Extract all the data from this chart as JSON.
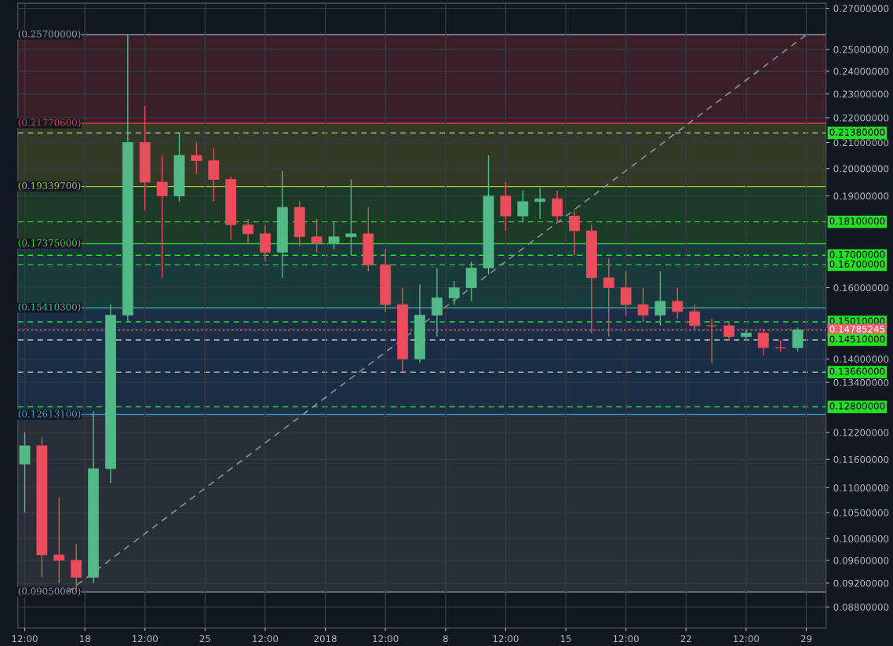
{
  "chart_data": {
    "type": "candlestick",
    "log": true,
    "grid": true,
    "x": [
      "2017-12-14T12:00",
      "2017-12-15T12:00",
      "2017-12-16T12:00",
      "2017-12-17T12:00",
      "2017-12-18T12:00",
      "2017-12-19T12:00",
      "2017-12-20T12:00",
      "2017-12-21T12:00",
      "2017-12-22T12:00",
      "2017-12-23T12:00",
      "2017-12-24T12:00",
      "2017-12-25T12:00",
      "2017-12-26T12:00",
      "2017-12-27T12:00",
      "2017-12-28T12:00",
      "2017-12-29T12:00",
      "2017-12-30T12:00",
      "2017-12-31T12:00",
      "2018-01-01T12:00",
      "2018-01-02T12:00",
      "2018-01-03T12:00",
      "2018-01-04T12:00",
      "2018-01-05T12:00",
      "2018-01-06T12:00",
      "2018-01-07T12:00",
      "2018-01-08T12:00",
      "2018-01-09T12:00",
      "2018-01-10T12:00",
      "2018-01-11T12:00",
      "2018-01-12T12:00",
      "2018-01-13T12:00",
      "2018-01-14T12:00",
      "2018-01-15T12:00",
      "2018-01-16T12:00",
      "2018-01-17T12:00",
      "2018-01-18T12:00",
      "2018-01-19T12:00",
      "2018-01-20T12:00",
      "2018-01-21T12:00",
      "2018-01-22T12:00",
      "2018-01-23T12:00",
      "2018-01-24T12:00",
      "2018-01-25T12:00",
      "2018-01-26T12:00",
      "2018-01-27T12:00",
      "2018-01-28T12:00"
    ],
    "ohlc": [
      [
        0.115,
        0.122,
        0.105,
        0.119
      ],
      [
        0.119,
        0.121,
        0.093,
        0.097
      ],
      [
        0.097,
        0.108,
        0.092,
        0.096
      ],
      [
        0.096,
        0.099,
        0.0905,
        0.093
      ],
      [
        0.093,
        0.127,
        0.092,
        0.114
      ],
      [
        0.114,
        0.155,
        0.111,
        0.152
      ],
      [
        0.152,
        0.257,
        0.15,
        0.21
      ],
      [
        0.21,
        0.225,
        0.185,
        0.195
      ],
      [
        0.195,
        0.205,
        0.163,
        0.19
      ],
      [
        0.19,
        0.214,
        0.188,
        0.205
      ],
      [
        0.205,
        0.21,
        0.198,
        0.203
      ],
      [
        0.203,
        0.208,
        0.188,
        0.196
      ],
      [
        0.196,
        0.197,
        0.175,
        0.18
      ],
      [
        0.18,
        0.182,
        0.174,
        0.177
      ],
      [
        0.177,
        0.18,
        0.168,
        0.171
      ],
      [
        0.171,
        0.199,
        0.163,
        0.186
      ],
      [
        0.186,
        0.188,
        0.173,
        0.176
      ],
      [
        0.176,
        0.182,
        0.171,
        0.174
      ],
      [
        0.174,
        0.181,
        0.172,
        0.176
      ],
      [
        0.176,
        0.196,
        0.17,
        0.177
      ],
      [
        0.177,
        0.186,
        0.165,
        0.167
      ],
      [
        0.167,
        0.172,
        0.153,
        0.155
      ],
      [
        0.155,
        0.16,
        0.1366,
        0.14
      ],
      [
        0.14,
        0.161,
        0.139,
        0.152
      ],
      [
        0.152,
        0.166,
        0.146,
        0.157
      ],
      [
        0.157,
        0.162,
        0.155,
        0.16
      ],
      [
        0.16,
        0.168,
        0.156,
        0.166
      ],
      [
        0.166,
        0.205,
        0.164,
        0.19
      ],
      [
        0.19,
        0.195,
        0.178,
        0.183
      ],
      [
        0.183,
        0.192,
        0.181,
        0.188
      ],
      [
        0.188,
        0.193,
        0.182,
        0.189
      ],
      [
        0.189,
        0.192,
        0.181,
        0.183
      ],
      [
        0.183,
        0.185,
        0.17,
        0.178
      ],
      [
        0.178,
        0.18,
        0.147,
        0.163
      ],
      [
        0.163,
        0.169,
        0.146,
        0.16
      ],
      [
        0.16,
        0.165,
        0.152,
        0.155
      ],
      [
        0.155,
        0.16,
        0.15,
        0.152
      ],
      [
        0.152,
        0.165,
        0.149,
        0.156
      ],
      [
        0.156,
        0.16,
        0.151,
        0.153
      ],
      [
        0.153,
        0.155,
        0.148,
        0.149
      ],
      [
        0.149,
        0.151,
        0.139,
        0.149
      ],
      [
        0.149,
        0.15,
        0.145,
        0.146
      ],
      [
        0.146,
        0.148,
        0.145,
        0.147
      ],
      [
        0.147,
        0.148,
        0.141,
        0.143
      ],
      [
        0.143,
        0.145,
        0.142,
        0.143
      ],
      [
        0.143,
        0.1485,
        0.142,
        0.14785245
      ]
    ],
    "colors": [
      "#53b987",
      "#eb4d5c",
      "#eb4d5c",
      "#eb4d5c",
      "#53b987",
      "#53b987",
      "#53b987",
      "#eb4d5c",
      "#eb4d5c",
      "#53b987",
      "#eb4d5c",
      "#eb4d5c",
      "#eb4d5c",
      "#eb4d5c",
      "#eb4d5c",
      "#53b987",
      "#eb4d5c",
      "#eb4d5c",
      "#53b987",
      "#53b987",
      "#eb4d5c",
      "#eb4d5c",
      "#eb4d5c",
      "#53b987",
      "#53b987",
      "#53b987",
      "#53b987",
      "#53b987",
      "#eb4d5c",
      "#53b987",
      "#53b987",
      "#eb4d5c",
      "#eb4d5c",
      "#eb4d5c",
      "#eb4d5c",
      "#eb4d5c",
      "#eb4d5c",
      "#53b987",
      "#eb4d5c",
      "#eb4d5c",
      "#eb4d5c",
      "#eb4d5c",
      "#53b987",
      "#eb4d5c",
      "#eb4d5c",
      "#53b987"
    ],
    "series": [
      {
        "type": "line",
        "x": [
          "2017-12-17",
          "2018-01-29"
        ],
        "values": [
          0.0905,
          0.257
        ],
        "color": "#8a8d96",
        "line_style": "dashed"
      }
    ],
    "xlim": [
      "2017-12-14T02:24",
      "2018-01-30T03:36"
    ],
    "xticks": [
      {
        "value": "2017-12-14T12:00",
        "label": "12:00"
      },
      {
        "value": "2017-12-18",
        "label": "18"
      },
      {
        "value": "2017-12-21T12:00",
        "label": "12:00"
      },
      {
        "value": "2017-12-25",
        "label": "25"
      },
      {
        "value": "2017-12-28T12:00",
        "label": "12:00"
      },
      {
        "value": "2018-01-01",
        "label": "2018"
      },
      {
        "value": "2018-01-04T12:00",
        "label": "12:00"
      },
      {
        "value": "2018-01-08",
        "label": "8"
      },
      {
        "value": "2018-01-11T12:00",
        "label": "12:00"
      },
      {
        "value": "2018-01-15",
        "label": "15"
      },
      {
        "value": "2018-01-18T12:00",
        "label": "12:00"
      },
      {
        "value": "2018-01-22",
        "label": "22"
      },
      {
        "value": "2018-01-25T12:00",
        "label": "12:00"
      },
      {
        "value": "2018-01-29",
        "label": "29"
      }
    ],
    "ylim": [
      0.0846,
      0.2726
    ],
    "yticks": [
      {
        "value": 0.27,
        "label": "0.27000000"
      },
      {
        "value": 0.25,
        "label": "0.25000000"
      },
      {
        "value": 0.24,
        "label": "0.24000000"
      },
      {
        "value": 0.23,
        "label": "0.23000000"
      },
      {
        "value": 0.22,
        "label": "0.22000000"
      },
      {
        "value": 0.21,
        "label": "0.21000000"
      },
      {
        "value": 0.2,
        "label": "0.20000000"
      },
      {
        "value": 0.19,
        "label": "0.19000000"
      },
      {
        "value": 0.16,
        "label": "0.16000000"
      },
      {
        "value": 0.14,
        "label": "0.14000000"
      },
      {
        "value": 0.134,
        "label": "0.13400000"
      },
      {
        "value": 0.122,
        "label": "0.12200000"
      },
      {
        "value": 0.116,
        "label": "0.11600000"
      },
      {
        "value": 0.11,
        "label": "0.11000000"
      },
      {
        "value": 0.105,
        "label": "0.10500000"
      },
      {
        "value": 0.1,
        "label": "0.10000000"
      },
      {
        "value": 0.096,
        "label": "0.09600000"
      },
      {
        "value": 0.092,
        "label": "0.09200000"
      },
      {
        "value": 0.088,
        "label": "0.08800000"
      }
    ],
    "bands": [
      {
        "axis": "y",
        "from": 0.217706,
        "to": 0.257,
        "color": "#3b1f28"
      },
      {
        "axis": "y",
        "from": 0.193397,
        "to": 0.217706,
        "color": "#323a26"
      },
      {
        "axis": "y",
        "from": 0.17375,
        "to": 0.193397,
        "color": "#1b3a27"
      },
      {
        "axis": "y",
        "from": 0.154103,
        "to": 0.17375,
        "color": "#183a3a"
      },
      {
        "axis": "y",
        "from": 0.126131,
        "to": 0.154103,
        "color": "#1a2e45"
      },
      {
        "axis": "y",
        "from": 0.0905,
        "to": 0.126131,
        "color": "#2a2e39"
      }
    ],
    "ref_lines": [
      {
        "axis": "y",
        "value": 0.257,
        "label": "(0.25700000)",
        "color": "#9598a1",
        "line_style": "solid"
      },
      {
        "axis": "y",
        "value": 0.217706,
        "label": "(0.21770600)",
        "color": "#e0393e",
        "line_style": "solid"
      },
      {
        "axis": "y",
        "value": 0.193397,
        "label": "(0.19339700)",
        "color": "#a6c63b",
        "line_style": "solid"
      },
      {
        "axis": "y",
        "value": 0.17375,
        "label": "(0.17375000)",
        "color": "#3bc63b",
        "line_style": "solid"
      },
      {
        "axis": "y",
        "value": 0.154103,
        "label": "(0.15410300)",
        "color": "#3bb6a1",
        "line_style": "solid"
      },
      {
        "axis": "y",
        "value": 0.126131,
        "label": "(0.12613100)",
        "color": "#3b9ec6",
        "line_style": "solid"
      },
      {
        "axis": "y",
        "value": 0.0905,
        "label": "(0.09050000)",
        "color": "#9598a1",
        "line_style": "solid"
      },
      {
        "axis": "y",
        "value": 0.2138,
        "label": "0.21380000",
        "color": "#c8c8c8",
        "line_style": "dashed"
      },
      {
        "axis": "y",
        "value": 0.181,
        "label": "0.18100000",
        "color": "#22e022",
        "line_style": "dashed"
      },
      {
        "axis": "y",
        "value": 0.17,
        "label": "0.17000000",
        "color": "#22e022",
        "line_style": "dashed"
      },
      {
        "axis": "y",
        "value": 0.167,
        "label": "0.16700000",
        "color": "#22e022",
        "line_style": "dashed"
      },
      {
        "axis": "y",
        "value": 0.1501,
        "label": "0.15010000",
        "color": "#22e022",
        "line_style": "dashed"
      },
      {
        "axis": "y",
        "value": 0.14785245,
        "label": "0.14785245",
        "color": "#f0636e",
        "line_style": "dotted"
      },
      {
        "axis": "y",
        "value": 0.1451,
        "label": "0.14510000",
        "color": "#c8c8c8",
        "line_style": "dashed"
      },
      {
        "axis": "y",
        "value": 0.1366,
        "label": "0.13660000",
        "color": "#c8c8c8",
        "line_style": "dashed"
      },
      {
        "axis": "y",
        "value": 0.128,
        "label": "0.12800000",
        "color": "#22e022",
        "line_style": "dashed"
      }
    ]
  }
}
